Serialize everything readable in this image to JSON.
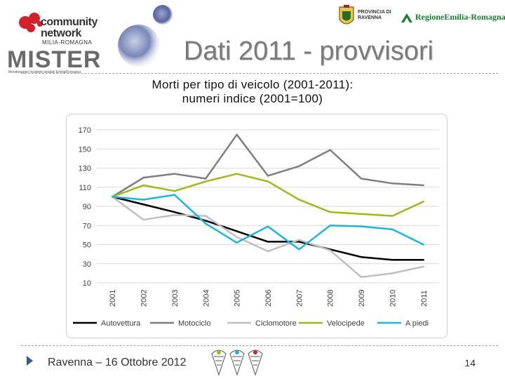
{
  "header": {
    "logo_community": {
      "line1": "community",
      "line2": "network",
      "sub": "MILIA-ROMAGNA"
    },
    "logo_mister": {
      "word": "MISTER",
      "tags": "Monitoraggio   Incidenti   stradali   EmiliaRomagna"
    },
    "logo_provincia": {
      "line1": "PROVINCIA DI",
      "line2": "RAVENNA"
    },
    "logo_regione": "RegioneEmilia-Romagna",
    "slide_title": "Dati 2011 - provvisori"
  },
  "chart_data": {
    "type": "line",
    "title": "Morti per tipo di veicolo (2001-2011):\nnumeri indice (2001=100)",
    "title_lines": [
      "Morti per tipo di veicolo (2001-2011):",
      "numeri indice (2001=100)"
    ],
    "x": [
      "2001",
      "2002",
      "2003",
      "2004",
      "2005",
      "2006",
      "2007",
      "2008",
      "2009",
      "2010",
      "2011"
    ],
    "ylim": [
      10,
      170
    ],
    "yticks": [
      10,
      30,
      50,
      70,
      90,
      110,
      130,
      150,
      170
    ],
    "grid": true,
    "legend_position": "bottom",
    "series": [
      {
        "name": "Autovettura",
        "color": "#000000",
        "values": [
          100,
          92,
          84,
          75,
          64,
          53,
          53,
          45,
          37,
          34,
          34
        ]
      },
      {
        "name": "Motociclo",
        "color": "#7f7f7f",
        "values": [
          100,
          120,
          124,
          119,
          165,
          122,
          132,
          149,
          119,
          114,
          112
        ]
      },
      {
        "name": "Ciclomotore",
        "color": "#bfbfbf",
        "values": [
          100,
          76,
          81,
          80,
          58,
          43,
          55,
          44,
          16,
          20,
          27
        ]
      },
      {
        "name": "Velocipede",
        "color": "#9bbb1c",
        "values": [
          100,
          112,
          106,
          116,
          124,
          116,
          97,
          84,
          82,
          80,
          95
        ]
      },
      {
        "name": "A piedi",
        "color": "#1fb4e0",
        "values": [
          100,
          97,
          102,
          72,
          52,
          69,
          45,
          70,
          69,
          66,
          50
        ]
      }
    ]
  },
  "footer": {
    "location_date": "Ravenna – 16 Ottobre 2012",
    "page_number": "14"
  }
}
